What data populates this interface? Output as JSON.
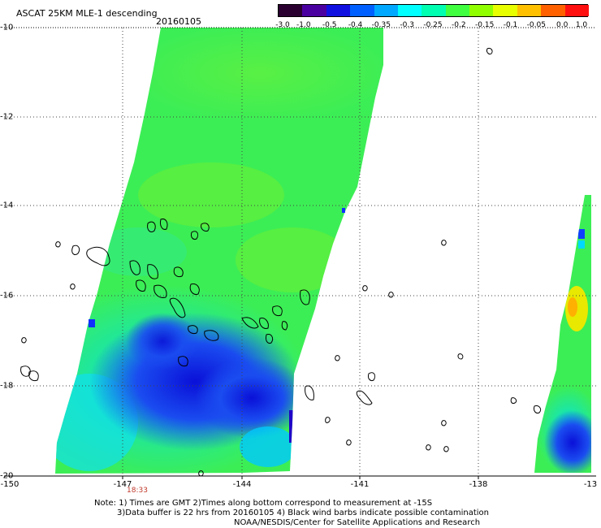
{
  "header": {
    "title": "ASCAT 25KM MLE-1 descending",
    "date": "20160105"
  },
  "colorbar": {
    "labels": [
      "-3.0",
      "-1.0",
      "-0.5",
      "-0.4",
      "-0.35",
      "-0.3",
      "-0.25",
      "-0.2",
      "-0.15",
      "-0.1",
      "-0.05",
      "0.0",
      "1.0"
    ],
    "colors": [
      "#2a0030",
      "#4a00a0",
      "#1010e0",
      "#0060ff",
      "#00a8ff",
      "#00ffff",
      "#00ffb0",
      "#40ff40",
      "#90ff00",
      "#e8ff00",
      "#ffc000",
      "#ff6000",
      "#ff1010"
    ]
  },
  "axes": {
    "y_labels": [
      "-10",
      "-12",
      "-14",
      "-16",
      "-18",
      "-20"
    ],
    "x_labels": [
      "-150",
      "-147",
      "-144",
      "-141",
      "-138",
      "-13"
    ],
    "time_label": "18:33"
  },
  "notes": {
    "line1": "Note: 1) Times are GMT 2)Times along bottom correspond to measurement at -15S",
    "line2": "3)Data buffer is 22 hrs from 20160105 4) Black wind barbs indicate possible contamination",
    "line3": "NOAA/NESDIS/Center for Satellite Applications and Research"
  }
}
